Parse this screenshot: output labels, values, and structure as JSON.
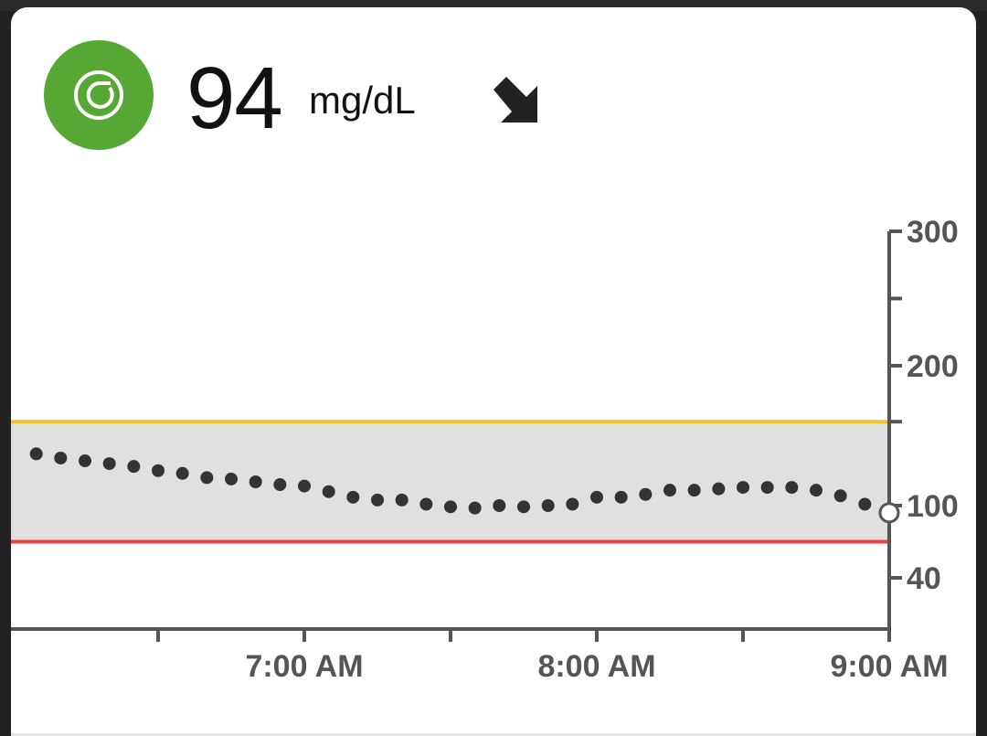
{
  "reading": {
    "value": "94",
    "unit": "mg/dL",
    "status_icon": "sensor-icon",
    "trend_icon": "arrow-down-right-icon",
    "status_color": "#56a733"
  },
  "chart_data": {
    "type": "scatter",
    "x_ticks": [
      "7:00 AM",
      "8:00 AM",
      "9:00 AM"
    ],
    "y_ticks": [
      40,
      100,
      200,
      300
    ],
    "ylim": [
      40,
      300
    ],
    "x_minutes_range": [
      -180,
      0
    ],
    "target_range": {
      "low": 70,
      "high": 160
    },
    "target_colors": {
      "high": "#f5c232",
      "low": "#f04040",
      "band": "#e0e0e0"
    },
    "x": [
      -175,
      -170,
      -165,
      -160,
      -155,
      -150,
      -145,
      -140,
      -135,
      -130,
      -125,
      -120,
      -115,
      -110,
      -105,
      -100,
      -95,
      -90,
      -85,
      -80,
      -75,
      -70,
      -65,
      -60,
      -55,
      -50,
      -45,
      -40,
      -35,
      -30,
      -25,
      -20,
      -15,
      -10,
      -5,
      0
    ],
    "y": [
      137,
      134,
      132,
      130,
      128,
      125,
      123,
      120,
      119,
      117,
      115,
      114,
      110,
      106,
      104,
      104,
      101,
      99,
      98,
      100,
      99,
      100,
      101,
      106,
      106,
      108,
      111,
      111,
      112,
      113,
      113,
      113,
      111,
      107,
      101,
      94
    ],
    "current_point": {
      "x": 0,
      "y": 94
    }
  }
}
